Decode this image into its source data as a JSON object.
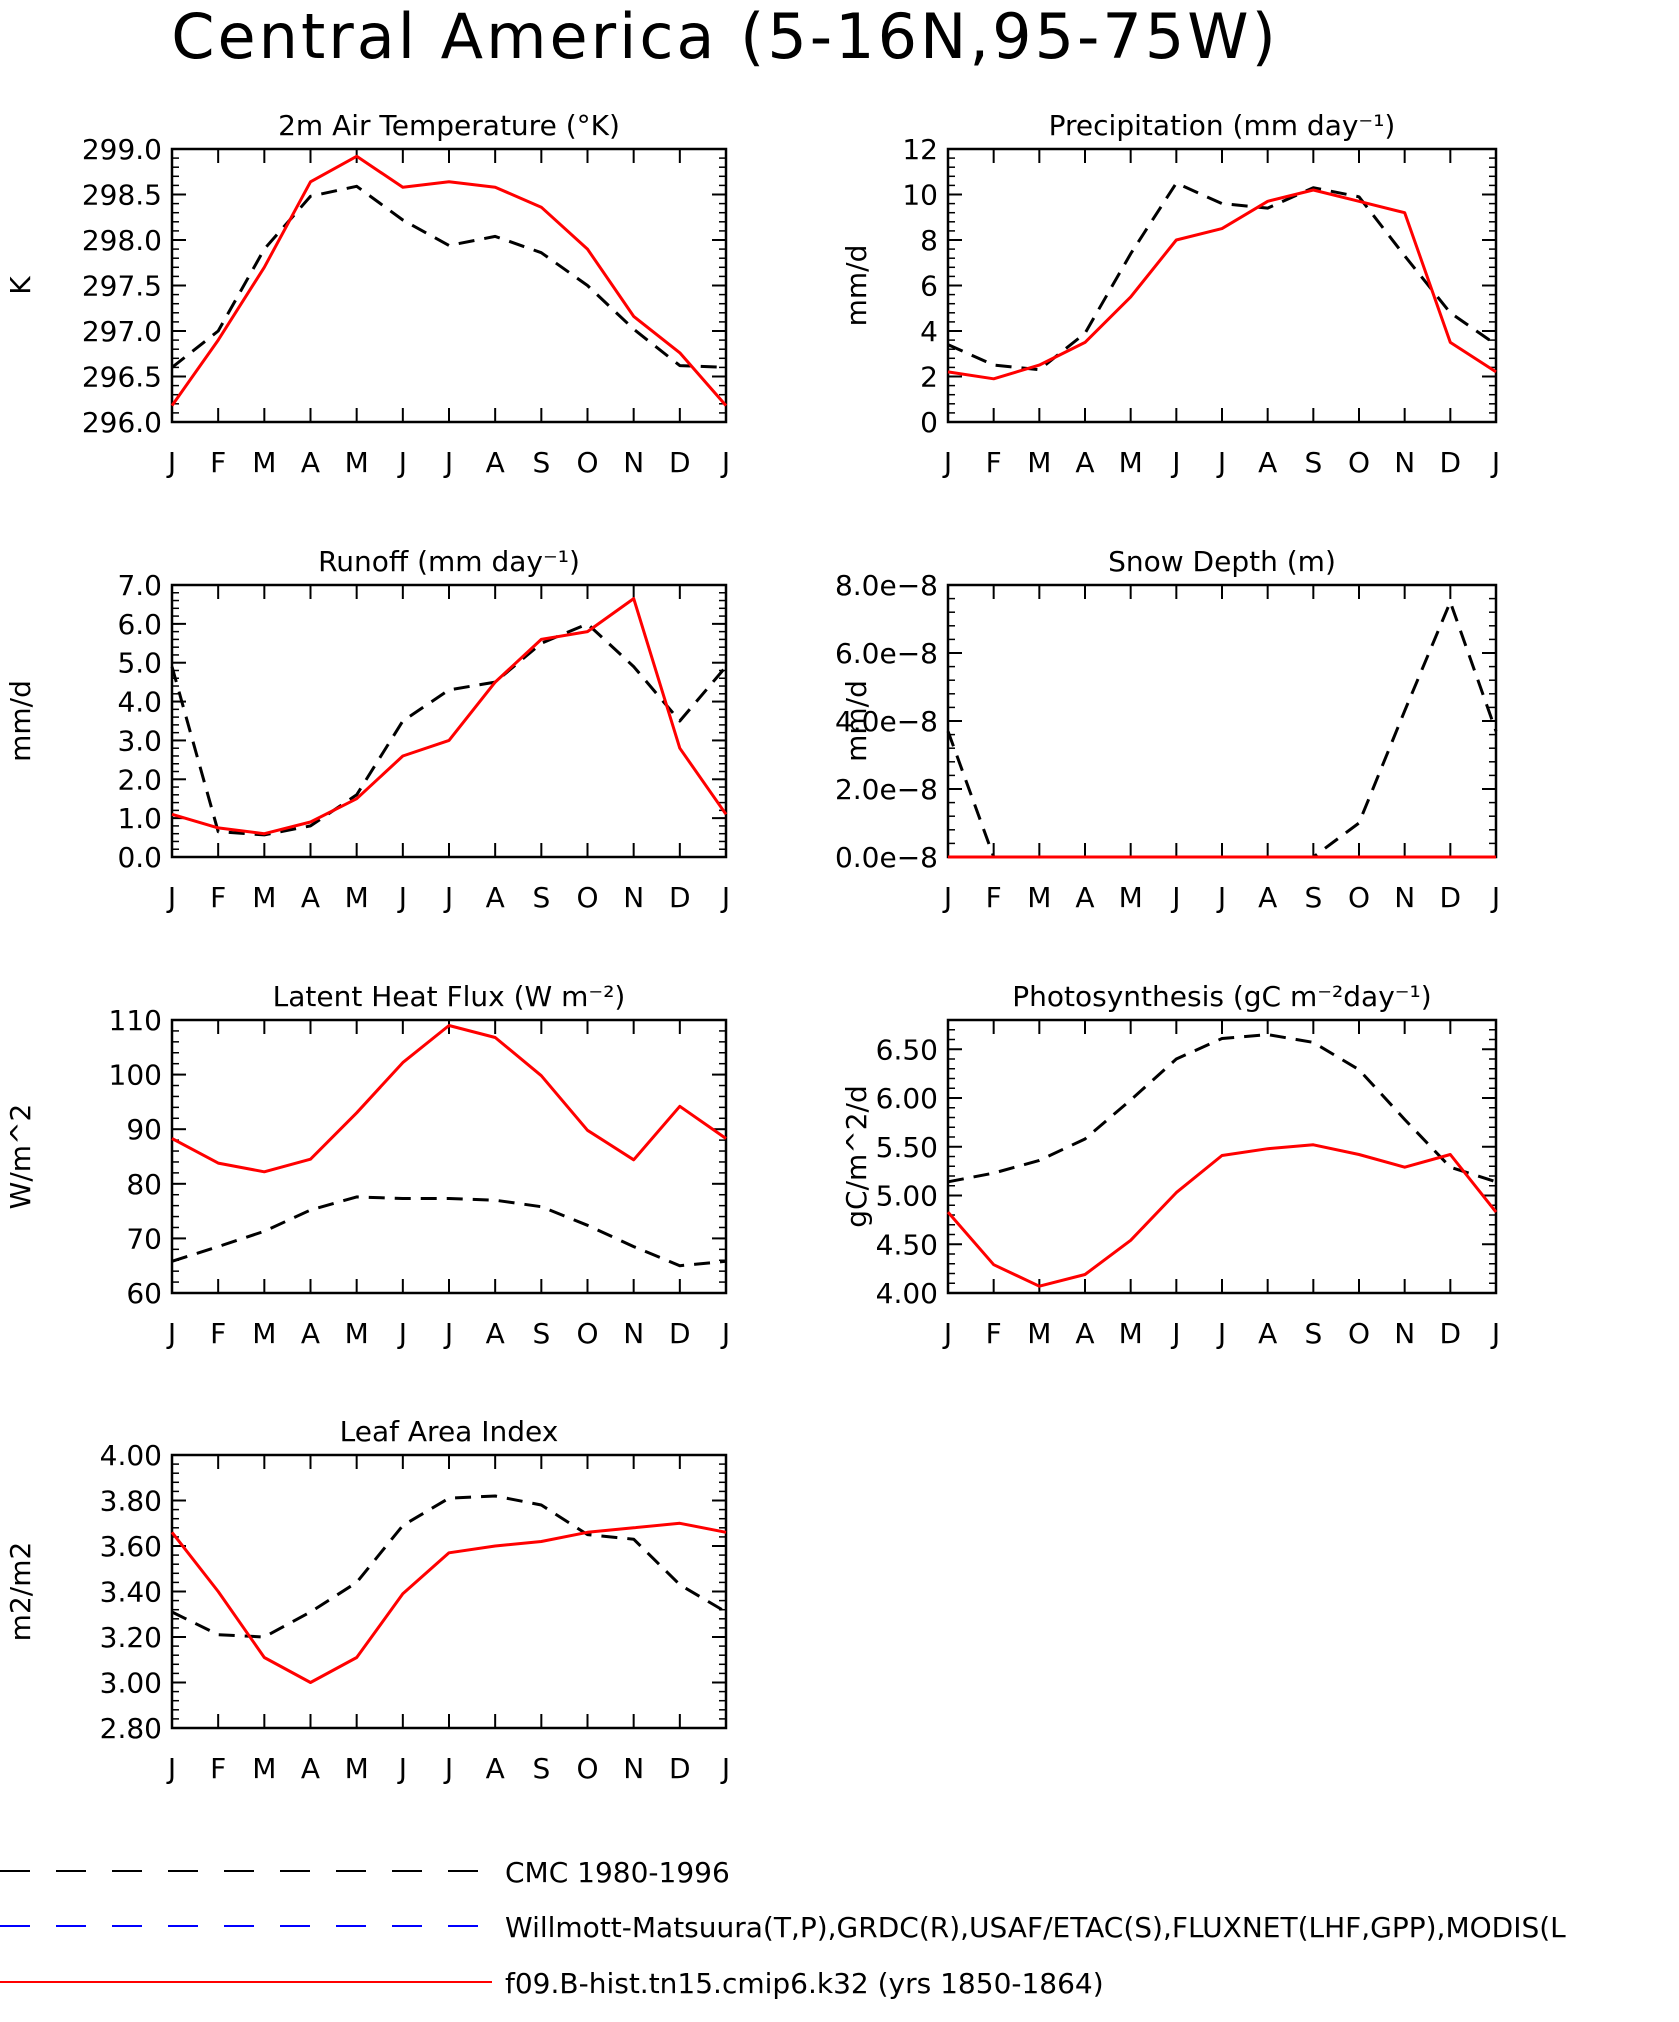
{
  "page": {
    "title": "Central America (5-16N,95-75W)"
  },
  "legend": {
    "items": [
      {
        "label": "CMC 1980-1996",
        "color": "#000000",
        "style": "dash"
      },
      {
        "label": "Willmott-Matsuura(T,P),GRDC(R),USAF/ETAC(S),FLUXNET(LHF,GPP),MODIS(L",
        "color": "#0000ff",
        "style": "dash"
      },
      {
        "label": "f09.B-hist.tn15.cmip6.k32 (yrs 1850-1864)",
        "color": "#ff0000",
        "style": "solid"
      }
    ]
  },
  "chart_data": [
    {
      "type": "line",
      "title": "2m Air Temperature (°K)",
      "ylabel": "K",
      "x": [
        "J",
        "F",
        "M",
        "A",
        "M",
        "J",
        "J",
        "A",
        "S",
        "O",
        "N",
        "D",
        "J"
      ],
      "ylim": [
        296.0,
        299.0
      ],
      "yticks": [
        "296.0",
        "296.5",
        "297.0",
        "297.5",
        "298.0",
        "298.5",
        "299.0"
      ],
      "series": [
        {
          "name": "CMC 1980-1996",
          "color": "#000000",
          "dash": true,
          "values": [
            296.6,
            297.0,
            297.9,
            298.48,
            298.59,
            298.22,
            297.94,
            298.04,
            297.86,
            297.5,
            297.02,
            296.62,
            296.6
          ]
        },
        {
          "name": "f09.B-hist.tn15.cmip6.k32 (yrs 1850-1864)",
          "color": "#ff0000",
          "dash": false,
          "values": [
            296.18,
            296.9,
            297.7,
            298.64,
            298.92,
            298.58,
            298.64,
            298.58,
            298.36,
            297.9,
            297.16,
            296.76,
            296.18
          ]
        }
      ]
    },
    {
      "type": "line",
      "title": "Precipitation (mm day⁻¹)",
      "ylabel": "mm/d",
      "x": [
        "J",
        "F",
        "M",
        "A",
        "M",
        "J",
        "J",
        "A",
        "S",
        "O",
        "N",
        "D",
        "J"
      ],
      "ylim": [
        0,
        12
      ],
      "yticks": [
        "0",
        "2",
        "4",
        "6",
        "8",
        "10",
        "12"
      ],
      "series": [
        {
          "name": "CMC 1980-1996",
          "color": "#000000",
          "dash": true,
          "values": [
            3.4,
            2.5,
            2.3,
            3.9,
            7.4,
            10.5,
            9.6,
            9.4,
            10.3,
            9.9,
            7.3,
            4.8,
            3.4
          ]
        },
        {
          "name": "f09.B-hist.tn15.cmip6.k32 (yrs 1850-1864)",
          "color": "#ff0000",
          "dash": false,
          "values": [
            2.2,
            1.9,
            2.5,
            3.5,
            5.5,
            8.0,
            8.5,
            9.7,
            10.2,
            9.7,
            9.2,
            3.5,
            2.2
          ]
        }
      ]
    },
    {
      "type": "line",
      "title": "Runoff (mm day⁻¹)",
      "ylabel": "mm/d",
      "x": [
        "J",
        "F",
        "M",
        "A",
        "M",
        "J",
        "J",
        "A",
        "S",
        "O",
        "N",
        "D",
        "J"
      ],
      "ylim": [
        0,
        7
      ],
      "yticks": [
        "0.0",
        "1.0",
        "2.0",
        "3.0",
        "4.0",
        "5.0",
        "6.0",
        "7.0"
      ],
      "series": [
        {
          "name": "CMC 1980-1996",
          "color": "#000000",
          "dash": true,
          "values": [
            4.9,
            0.65,
            0.57,
            0.8,
            1.6,
            3.5,
            4.3,
            4.5,
            5.5,
            6.0,
            4.9,
            3.5,
            4.9
          ]
        },
        {
          "name": "f09.B-hist.tn15.cmip6.k32 (yrs 1850-1864)",
          "color": "#ff0000",
          "dash": false,
          "values": [
            1.1,
            0.75,
            0.6,
            0.9,
            1.5,
            2.6,
            3.0,
            4.5,
            5.6,
            5.8,
            6.65,
            2.8,
            1.1
          ]
        }
      ]
    },
    {
      "type": "line",
      "title": "Snow Depth (m)",
      "ylabel": "mm/d",
      "x": [
        "J",
        "F",
        "M",
        "A",
        "M",
        "J",
        "J",
        "A",
        "S",
        "O",
        "N",
        "D",
        "J"
      ],
      "ylim": [
        0,
        8e-08
      ],
      "yticks": [
        "0.0e−8",
        "2.0e−8",
        "4.0e−8",
        "6.0e−8",
        "8.0e−8"
      ],
      "series": [
        {
          "name": "CMC 1980-1996",
          "color": "#000000",
          "dash": true,
          "values": [
            3.7e-08,
            0,
            0,
            0,
            0,
            0,
            0,
            0,
            0,
            1e-08,
            4.3e-08,
            7.5e-08,
            3.7e-08
          ]
        },
        {
          "name": "Willmott-Matsuura(T,P),GRDC(R),USAF/ETAC(S),FLUXNET(LHF,GPP),MODIS(L",
          "color": "#0000ff",
          "dash": true,
          "values": [
            0,
            0,
            0,
            0,
            0,
            0,
            0,
            0,
            0,
            0,
            0,
            0,
            0
          ]
        },
        {
          "name": "f09.B-hist.tn15.cmip6.k32 (yrs 1850-1864)",
          "color": "#ff0000",
          "dash": false,
          "values": [
            0,
            0,
            0,
            0,
            0,
            0,
            0,
            0,
            0,
            0,
            0,
            0,
            0
          ]
        }
      ]
    },
    {
      "type": "line",
      "title": "Latent Heat Flux (W m⁻²)",
      "ylabel": "W/m^2",
      "x": [
        "J",
        "F",
        "M",
        "A",
        "M",
        "J",
        "J",
        "A",
        "S",
        "O",
        "N",
        "D",
        "J"
      ],
      "ylim": [
        60,
        110
      ],
      "yticks": [
        "60",
        "70",
        "80",
        "90",
        "100",
        "110"
      ],
      "series": [
        {
          "name": "CMC 1980-1996",
          "color": "#000000",
          "dash": true,
          "values": [
            65.8,
            68.5,
            71.3,
            75.2,
            77.6,
            77.3,
            77.3,
            77.0,
            75.8,
            72.4,
            68.5,
            65.0,
            65.8
          ]
        },
        {
          "name": "f09.B-hist.tn15.cmip6.k32 (yrs 1850-1864)",
          "color": "#ff0000",
          "dash": false,
          "values": [
            88.3,
            83.8,
            82.2,
            84.5,
            93.0,
            102.2,
            109.0,
            106.8,
            99.8,
            89.8,
            84.4,
            94.2,
            88.3
          ]
        }
      ]
    },
    {
      "type": "line",
      "title": "Photosynthesis (gC m⁻²day⁻¹)",
      "ylabel": "gC/m^2/d",
      "x": [
        "J",
        "F",
        "M",
        "A",
        "M",
        "J",
        "J",
        "A",
        "S",
        "O",
        "N",
        "D",
        "J"
      ],
      "ylim": [
        4.0,
        6.8
      ],
      "yticks": [
        "4.00",
        "4.50",
        "5.00",
        "5.50",
        "6.00",
        "6.50"
      ],
      "series": [
        {
          "name": "CMC 1980-1996",
          "color": "#000000",
          "dash": true,
          "values": [
            5.14,
            5.23,
            5.36,
            5.58,
            5.98,
            6.4,
            6.61,
            6.65,
            6.57,
            6.29,
            5.78,
            5.29,
            5.14
          ]
        },
        {
          "name": "f09.B-hist.tn15.cmip6.k32 (yrs 1850-1864)",
          "color": "#ff0000",
          "dash": false,
          "values": [
            4.83,
            4.29,
            4.07,
            4.19,
            4.54,
            5.03,
            5.41,
            5.48,
            5.52,
            5.42,
            5.29,
            5.42,
            4.83
          ]
        }
      ]
    },
    {
      "type": "line",
      "title": "Leaf Area Index",
      "ylabel": "m2/m2",
      "x": [
        "J",
        "F",
        "M",
        "A",
        "M",
        "J",
        "J",
        "A",
        "S",
        "O",
        "N",
        "D",
        "J"
      ],
      "ylim": [
        2.8,
        4.0
      ],
      "yticks": [
        "2.80",
        "3.00",
        "3.20",
        "3.40",
        "3.60",
        "3.80",
        "4.00"
      ],
      "series": [
        {
          "name": "CMC 1980-1996",
          "color": "#000000",
          "dash": true,
          "values": [
            3.31,
            3.21,
            3.2,
            3.31,
            3.44,
            3.69,
            3.81,
            3.82,
            3.78,
            3.65,
            3.63,
            3.43,
            3.31
          ]
        },
        {
          "name": "f09.B-hist.tn15.cmip6.k32 (yrs 1850-1864)",
          "color": "#ff0000",
          "dash": false,
          "values": [
            3.66,
            3.4,
            3.11,
            3.0,
            3.11,
            3.39,
            3.57,
            3.6,
            3.62,
            3.66,
            3.68,
            3.7,
            3.66
          ]
        }
      ]
    }
  ]
}
